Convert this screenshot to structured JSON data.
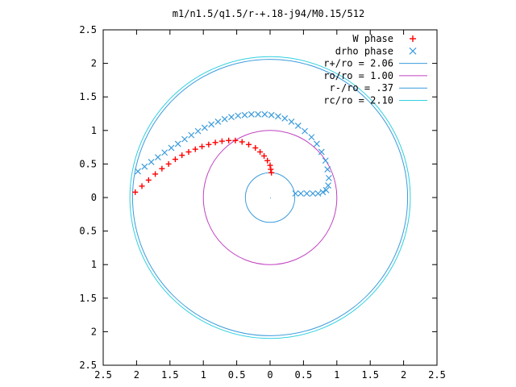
{
  "chart_data": {
    "type": "scatter",
    "title": "m1/n1.5/q1.5/r-+.18-j94/M0.15/512",
    "xlabel": "",
    "ylabel": "",
    "xlim": [
      -2.5,
      2.5
    ],
    "ylim": [
      -2.5,
      2.5
    ],
    "x_tick_values": [
      -2.5,
      -2,
      -1.5,
      -1,
      -0.5,
      0,
      0.5,
      1,
      1.5,
      2,
      2.5
    ],
    "x_tick_labels": [
      "2.5",
      "2",
      "1.5",
      "1",
      "0.5",
      "0",
      "0.5",
      "1",
      "1.5",
      "2",
      "2.5"
    ],
    "y_tick_values": [
      2.5,
      2,
      1.5,
      1,
      0.5,
      0,
      -0.5,
      -1,
      -1.5,
      -2,
      -2.5
    ],
    "y_tick_labels": [
      "2.5",
      "2",
      "1.5",
      "1",
      "0.5",
      "0",
      "0.5",
      "1",
      "1.5",
      "2",
      "2.5"
    ],
    "grid": false,
    "legend_position": "top-right",
    "series": [
      {
        "name": "W phase",
        "kind": "points",
        "marker": "+",
        "color": "#ff0000",
        "x": [
          -2.02,
          -1.92,
          -1.82,
          -1.72,
          -1.62,
          -1.52,
          -1.42,
          -1.32,
          -1.22,
          -1.12,
          -1.02,
          -0.92,
          -0.82,
          -0.72,
          -0.62,
          -0.52,
          -0.42,
          -0.32,
          -0.22,
          -0.15,
          -0.09,
          -0.04,
          0.0,
          0.01,
          0.02
        ],
        "y": [
          0.08,
          0.17,
          0.26,
          0.35,
          0.43,
          0.5,
          0.57,
          0.63,
          0.68,
          0.72,
          0.76,
          0.79,
          0.82,
          0.84,
          0.85,
          0.85,
          0.83,
          0.79,
          0.74,
          0.68,
          0.62,
          0.55,
          0.48,
          0.42,
          0.37
        ]
      },
      {
        "name": "drho phase",
        "kind": "points",
        "marker": "x",
        "color": "#3a9bdc",
        "x": [
          -1.98,
          -1.88,
          -1.78,
          -1.68,
          -1.58,
          -1.48,
          -1.38,
          -1.28,
          -1.18,
          -1.08,
          -0.98,
          -0.88,
          -0.78,
          -0.68,
          -0.58,
          -0.48,
          -0.38,
          -0.28,
          -0.18,
          -0.08,
          0.02,
          0.12,
          0.22,
          0.32,
          0.42,
          0.52,
          0.62,
          0.7,
          0.77,
          0.83,
          0.86,
          0.88,
          0.87,
          0.84,
          0.79,
          0.72,
          0.64,
          0.55,
          0.46,
          0.38
        ],
        "y": [
          0.39,
          0.46,
          0.53,
          0.6,
          0.67,
          0.74,
          0.8,
          0.87,
          0.93,
          0.99,
          1.04,
          1.09,
          1.13,
          1.17,
          1.2,
          1.22,
          1.23,
          1.24,
          1.24,
          1.24,
          1.23,
          1.21,
          1.18,
          1.13,
          1.07,
          0.99,
          0.9,
          0.8,
          0.68,
          0.55,
          0.42,
          0.29,
          0.18,
          0.11,
          0.08,
          0.06,
          0.06,
          0.06,
          0.06,
          0.06
        ]
      },
      {
        "name": "r+/ro = 2.06",
        "kind": "circle",
        "radius": 2.06,
        "color": "#3a9bdc"
      },
      {
        "name": "ro/ro = 1.00",
        "kind": "circle",
        "radius": 1.0,
        "color": "#c040c0"
      },
      {
        "name": "r-/ro = .37",
        "kind": "circle",
        "radius": 0.37,
        "color": "#3a9bdc"
      },
      {
        "name": "rc/ro = 2.10",
        "kind": "circle",
        "radius": 2.1,
        "color": "#30d0e0"
      }
    ]
  }
}
